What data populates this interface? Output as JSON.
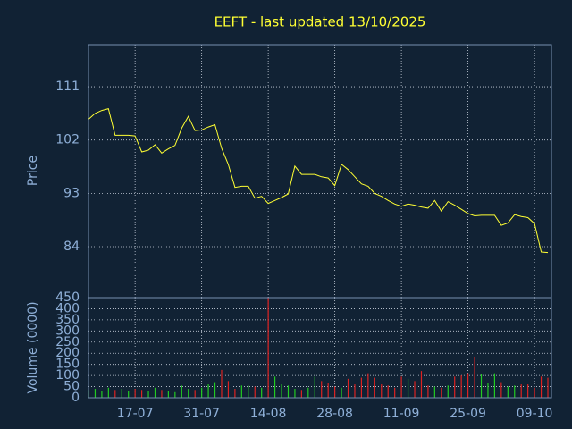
{
  "chart_data": {
    "type": "stock",
    "title": "EEFT - last updated 13/10/2025",
    "ylabel": "Price",
    "volume_label": "Volume (0000)",
    "categories": [
      null,
      null,
      null,
      null,
      null,
      null,
      null,
      "17-07",
      null,
      null,
      null,
      null,
      null,
      null,
      null,
      null,
      null,
      "31-07",
      null,
      null,
      null,
      null,
      null,
      null,
      null,
      null,
      null,
      "14-08",
      null,
      null,
      null,
      null,
      null,
      null,
      null,
      null,
      null,
      "28-08",
      null,
      null,
      null,
      null,
      null,
      null,
      null,
      null,
      null,
      "11-09",
      null,
      null,
      null,
      null,
      null,
      null,
      null,
      null,
      null,
      "25-09",
      null,
      null,
      null,
      null,
      null,
      null,
      null,
      null,
      null,
      "09-10",
      null,
      null
    ],
    "price": {
      "name": "Price",
      "color": "#ffff33",
      "values": [
        105.5,
        106.5,
        107.0,
        107.3,
        102.8,
        102.8,
        102.8,
        102.7,
        100.0,
        100.3,
        101.2,
        99.8,
        100.5,
        101.1,
        104.0,
        106.0,
        103.6,
        103.7,
        104.2,
        104.6,
        100.6,
        97.9,
        94.0,
        94.2,
        94.2,
        92.2,
        92.5,
        91.3,
        91.8,
        92.3,
        92.9,
        97.6,
        96.2,
        96.2,
        96.2,
        95.8,
        95.6,
        94.3,
        97.9,
        97.0,
        95.8,
        94.6,
        94.2,
        93.0,
        92.5,
        91.8,
        91.2,
        90.8,
        91.2,
        91.0,
        90.7,
        90.5,
        91.8,
        90.0,
        91.6,
        91.0,
        90.3,
        89.6,
        89.2,
        89.3,
        89.3,
        89.3,
        87.6,
        88.0,
        89.4,
        89.1,
        88.9,
        87.9,
        83.1,
        83.0
      ]
    },
    "volume": {
      "name": "Volume",
      "up_color": "#22cc22",
      "down_color": "#dd2222",
      "values": [
        35,
        40,
        30,
        45,
        35,
        40,
        30,
        40,
        35,
        30,
        45,
        35,
        30,
        25,
        55,
        40,
        35,
        45,
        60,
        70,
        125,
        75,
        40,
        55,
        55,
        50,
        45,
        450,
        95,
        60,
        55,
        40,
        35,
        45,
        95,
        75,
        65,
        50,
        45,
        85,
        60,
        90,
        110,
        90,
        60,
        55,
        45,
        95,
        85,
        75,
        120,
        55,
        50,
        45,
        55,
        95,
        100,
        110,
        185,
        105,
        65,
        110,
        70,
        50,
        55,
        60,
        60,
        45,
        95,
        90
      ]
    },
    "ylim": [
      75.4,
      118.1
    ],
    "yticks": [
      84,
      93,
      102,
      111
    ],
    "y2lim": [
      0,
      450
    ],
    "y2ticks": [
      0,
      50,
      100,
      150,
      200,
      250,
      300,
      350,
      400,
      450
    ],
    "grid": true
  }
}
